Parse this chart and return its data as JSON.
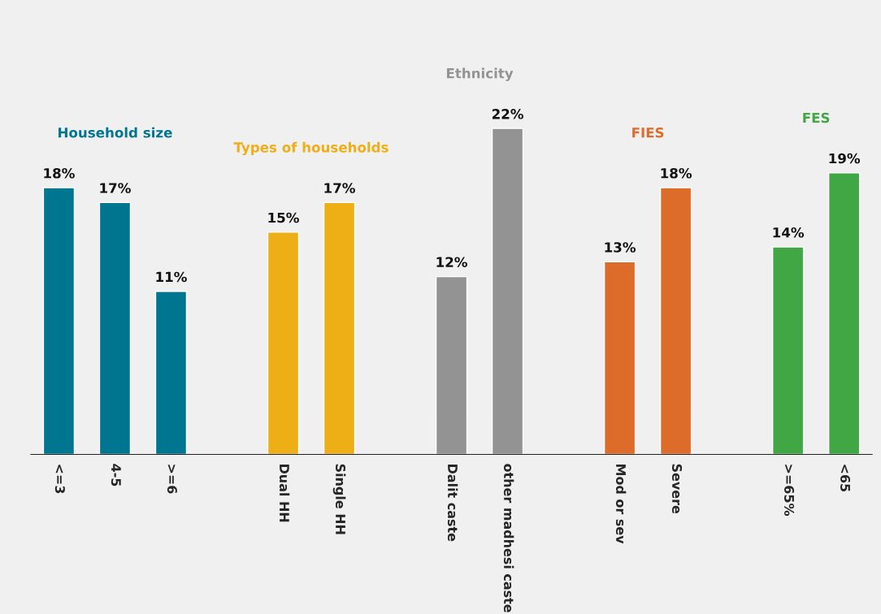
{
  "chart_data": {
    "type": "bar",
    "categories": [
      "<=3",
      "4-5",
      ">=6",
      null,
      "Dual HH",
      "Single HH",
      null,
      "Dalit caste",
      "other madhesi caste",
      null,
      "Mod or sev",
      "Severe",
      null,
      ">=65%",
      "<65"
    ],
    "series": [
      {
        "name": "Household size",
        "color": "#00758f",
        "values": [
          18,
          17,
          11,
          null,
          null,
          null,
          null,
          null,
          null,
          null,
          null,
          null,
          null,
          null,
          null
        ],
        "value_labels": [
          "18%",
          "17%",
          "11%",
          null,
          null,
          null,
          null,
          null,
          null,
          null,
          null,
          null,
          null,
          null,
          null
        ]
      },
      {
        "name": "Types of households",
        "color": "#eeae16",
        "values": [
          null,
          null,
          null,
          null,
          15,
          17,
          null,
          null,
          null,
          null,
          null,
          null,
          null,
          null,
          null
        ],
        "value_labels": [
          null,
          null,
          null,
          null,
          "15%",
          "17%",
          null,
          null,
          null,
          null,
          null,
          null,
          null,
          null,
          null
        ]
      },
      {
        "name": "Ethnicity",
        "color": "#939393",
        "values": [
          null,
          null,
          null,
          null,
          null,
          null,
          null,
          12,
          22,
          null,
          null,
          null,
          null,
          null,
          null
        ],
        "value_labels": [
          null,
          null,
          null,
          null,
          null,
          null,
          null,
          "12%",
          "22%",
          null,
          null,
          null,
          null,
          null,
          null
        ]
      },
      {
        "name": "FIES",
        "color": "#dd6b2a",
        "values": [
          null,
          null,
          null,
          null,
          null,
          null,
          null,
          null,
          null,
          null,
          13,
          18,
          null,
          null,
          null
        ],
        "value_labels": [
          null,
          null,
          null,
          null,
          null,
          null,
          null,
          null,
          null,
          null,
          "13%",
          "18%",
          null,
          null,
          null
        ]
      },
      {
        "name": "FES",
        "color": "#41a745",
        "values": [
          null,
          null,
          null,
          null,
          null,
          null,
          null,
          null,
          null,
          null,
          null,
          null,
          null,
          14,
          19
        ],
        "value_labels": [
          null,
          null,
          null,
          null,
          null,
          null,
          null,
          null,
          null,
          null,
          null,
          null,
          null,
          "14%",
          "19%"
        ]
      }
    ],
    "grid": false,
    "legend": false
  }
}
